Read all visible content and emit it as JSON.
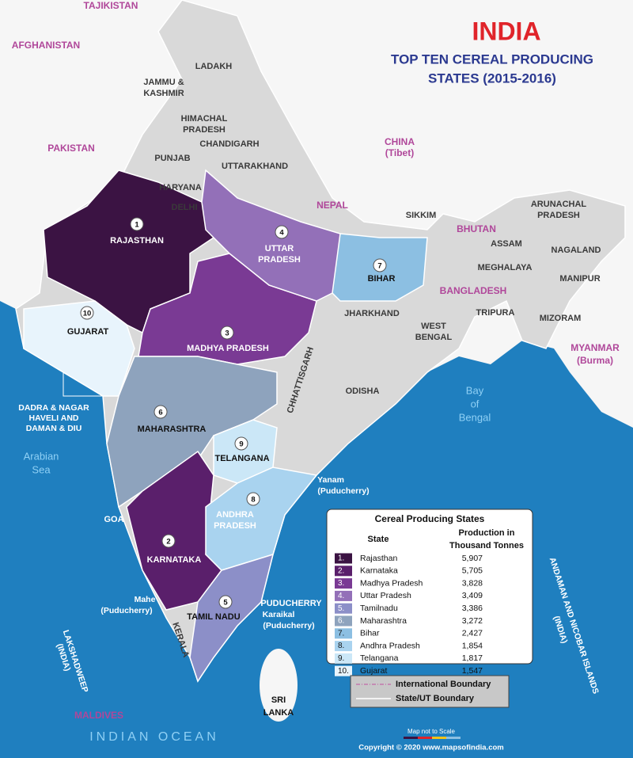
{
  "header": {
    "title": "INDIA",
    "subtitle_lines": [
      "TOP TEN CEREAL PRODUCING",
      "STATES (2015-2016)"
    ]
  },
  "map_labels": {
    "countries": [
      "TAJIKISTAN",
      "AFGHANISTAN",
      "PAKISTAN",
      "CHINA",
      "(Tibet)",
      "NEPAL",
      "BHUTAN",
      "BANGLADESH",
      "MYANMAR",
      "(Burma)",
      "SRI",
      "LANKA",
      "MALDIVES"
    ],
    "states": [
      "LADAKH",
      "JAMMU &",
      "KASHMIR",
      "HIMACHAL",
      "PRADESH",
      "CHANDIGARH",
      "PUNJAB",
      "UTTARAKHAND",
      "HARYANA",
      "DELHI",
      "SIKKIM",
      "ARUNACHAL",
      "PRADESH",
      "ASSAM",
      "NAGALAND",
      "MEGHALAYA",
      "MANIPUR",
      "TRIPURA",
      "MIZORAM",
      "JHARKHAND",
      "WEST",
      "BENGAL",
      "ODISHA",
      "CHHATTISGARH",
      "GOA",
      "KERALA",
      "PUDUCHERRY",
      "RAJASTHAN",
      "GUJARAT",
      "UTTAR",
      "PRADESH",
      "MADHYA  PRADESH",
      "BIHAR",
      "MAHARASHTRA",
      "TELANGANA",
      "ANDHRA",
      "PRADESH",
      "KARNATAKA",
      "TAMIL NADU",
      "DADRA & NAGAR",
      "HAVELI AND",
      "DAMAN & DIU",
      "Yanam",
      "(Puducherry)",
      "Mahe",
      "(Puducherry)",
      "Karaikal",
      "(Puducherry)",
      "LAKSHADWEEP",
      "(INDIA)",
      "ANDAMAN AND NICOBAR ISLANDS",
      "(INDIA)"
    ],
    "ranks": [
      "1",
      "2",
      "3",
      "4",
      "5",
      "6",
      "7",
      "8",
      "9",
      "10"
    ],
    "water": [
      "Arabian",
      "Sea",
      "Bay",
      "of",
      "Bengal",
      "INDIAN  OCEAN"
    ]
  },
  "legend": {
    "title": "Cereal Producing States",
    "col_state": "State",
    "col_production": [
      "Production in",
      "Thousand Tonnes"
    ],
    "rows": [
      {
        "rank": "1.",
        "state": "Rajasthan",
        "production": "5,907",
        "color": "#3b1343"
      },
      {
        "rank": "2.",
        "state": "Karnataka",
        "production": "5,705",
        "color": "#5a1f6b"
      },
      {
        "rank": "3.",
        "state": "Madhya Pradesh",
        "production": "3,828",
        "color": "#7a3a94"
      },
      {
        "rank": "4.",
        "state": "Uttar Pradesh",
        "production": "3,409",
        "color": "#9370b8"
      },
      {
        "rank": "5.",
        "state": "Tamilnadu",
        "production": "3,386",
        "color": "#8c8fc8"
      },
      {
        "rank": "6.",
        "state": "Maharashtra",
        "production": "3,272",
        "color": "#8ea3bd"
      },
      {
        "rank": "7.",
        "state": "Bihar",
        "production": "2,427",
        "color": "#8cbfe2"
      },
      {
        "rank": "8.",
        "state": "Andhra Pradesh",
        "production": "1,854",
        "color": "#a9d3ef"
      },
      {
        "rank": "9.",
        "state": "Telangana",
        "production": "1,817",
        "color": "#cbe7f7"
      },
      {
        "rank": "10.",
        "state": "Gujarat",
        "production": "1,547",
        "color": "#e8f4fc"
      }
    ]
  },
  "boundary_legend": [
    "International Boundary",
    "State/UT Boundary"
  ],
  "footer": {
    "scale_note": "Map not to Scale",
    "copyright": "Copyright © 2020 www.mapsofindia.com"
  }
}
